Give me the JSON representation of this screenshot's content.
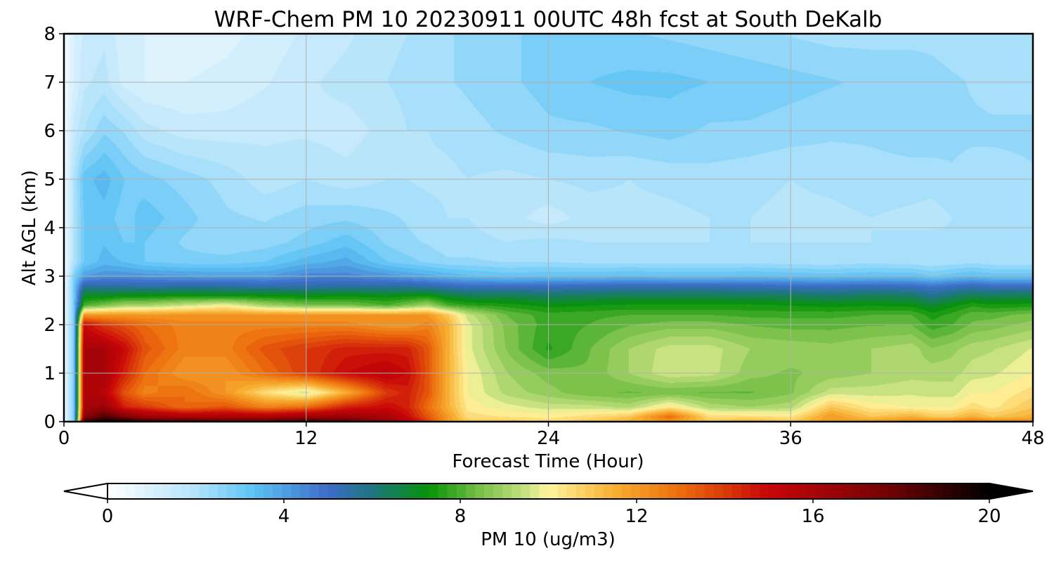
{
  "chart_data": {
    "type": "heatmap",
    "title": "WRF-Chem PM 10  20230911 00UTC 48h fcst at South DeKalb",
    "xlabel": "Forecast Time (Hour)",
    "ylabel": "Alt AGL (km)",
    "xlim": [
      0,
      48
    ],
    "ylim": [
      0,
      8
    ],
    "x_ticks": [
      0,
      12,
      24,
      36,
      48
    ],
    "y_ticks": [
      0,
      1,
      2,
      3,
      4,
      5,
      6,
      7,
      8
    ],
    "grid": true,
    "colorbar": {
      "label": "PM 10  (ug/m3)",
      "range": [
        0,
        20
      ],
      "ticks": [
        0,
        4,
        8,
        12,
        16,
        20
      ],
      "extend": "both",
      "stops": [
        [
          0,
          "#ffffff"
        ],
        [
          2,
          "#b3e3fb"
        ],
        [
          3.3,
          "#5cc3f5"
        ],
        [
          5,
          "#3d6cc8"
        ],
        [
          6,
          "#1e7580"
        ],
        [
          7.3,
          "#079307"
        ],
        [
          8.5,
          "#7cc24b"
        ],
        [
          9.5,
          "#c8e282"
        ],
        [
          10,
          "#fff59f"
        ],
        [
          11.5,
          "#f7ae31"
        ],
        [
          13,
          "#ec6d0c"
        ],
        [
          15,
          "#c80508"
        ],
        [
          17.5,
          "#7a0205"
        ],
        [
          20,
          "#000000"
        ]
      ]
    },
    "x": [
      0,
      0.5,
      1,
      2,
      3,
      4,
      6,
      8,
      10,
      12,
      14,
      16,
      17,
      18,
      19,
      20,
      22,
      24,
      26,
      28,
      30,
      32,
      34,
      36,
      38,
      40,
      42,
      43,
      44,
      45,
      46,
      48
    ],
    "y": [
      0,
      0.1,
      0.3,
      0.6,
      1.0,
      1.5,
      2.0,
      2.2,
      2.4,
      2.6,
      2.8,
      3.0,
      3.3,
      3.7,
      4.2,
      5.0,
      6.0,
      7.0,
      8.0
    ],
    "z": [
      [
        0.3,
        3,
        19,
        20,
        20,
        19,
        19,
        18.5,
        18.5,
        19,
        18.5,
        17,
        16,
        14,
        12,
        11,
        11,
        10.5,
        11,
        11.5,
        12,
        11,
        11.5,
        11,
        12,
        12,
        12.5,
        12.5,
        12.5,
        13,
        12.5,
        12.5
      ],
      [
        0.3,
        3,
        17,
        18.5,
        17.5,
        16.5,
        16,
        16,
        16,
        16.5,
        16.5,
        16,
        15,
        13.5,
        12,
        10.5,
        10.3,
        10.2,
        10.5,
        11,
        13,
        10.5,
        10.5,
        10.3,
        12,
        11,
        11.5,
        11,
        11,
        11.5,
        11,
        11.5
      ],
      [
        0.3,
        3,
        16,
        16.5,
        14.5,
        14,
        13,
        13.5,
        12.5,
        13,
        14.5,
        15,
        14.5,
        13,
        11.5,
        10.2,
        9.8,
        9.5,
        9.5,
        9.2,
        10.3,
        9.2,
        9,
        9.2,
        11,
        10.2,
        10,
        10,
        10,
        10.5,
        10.2,
        11
      ],
      [
        0.3,
        3,
        16,
        15.5,
        13.5,
        12.5,
        13,
        12,
        10.5,
        9.5,
        11.5,
        14,
        14.5,
        13.5,
        11.5,
        10,
        9.2,
        8.8,
        8.4,
        8.3,
        8.4,
        8.3,
        8.3,
        8.6,
        9.5,
        9.5,
        9.6,
        9.5,
        9.5,
        10,
        10,
        10.5
      ],
      [
        0.3,
        3,
        16,
        16,
        14.5,
        13,
        12,
        12,
        13,
        14,
        15,
        15.5,
        15,
        13.5,
        11.5,
        10,
        9,
        8.5,
        8.4,
        9,
        9.6,
        9.5,
        8.8,
        8.6,
        8.8,
        9,
        9.2,
        9.2,
        9.2,
        9.5,
        9.6,
        10
      ],
      [
        0.3,
        3,
        16,
        16,
        15,
        13.5,
        12.5,
        12.5,
        13.5,
        14,
        14.5,
        14.5,
        14.5,
        13.5,
        11.5,
        9.8,
        8.6,
        7.6,
        8.3,
        9,
        9.5,
        9.5,
        9,
        8.9,
        8.8,
        9,
        9.2,
        8.7,
        8.9,
        9.2,
        9.3,
        9.7
      ],
      [
        0.3,
        3,
        15,
        14,
        13.5,
        13,
        12.5,
        12.5,
        12.5,
        12.5,
        12.5,
        12,
        12,
        12.5,
        11.5,
        9.8,
        8.5,
        7.8,
        8,
        8.3,
        8.5,
        8.5,
        8.3,
        8.2,
        8.2,
        8.3,
        8.3,
        7.8,
        8,
        8.4,
        8.5,
        8.8
      ],
      [
        0.3,
        3,
        12,
        12,
        12,
        12,
        12,
        12,
        12,
        12,
        12,
        12,
        12,
        12,
        11,
        9.5,
        8.3,
        7.8,
        7.9,
        8,
        8,
        8,
        7.9,
        7.9,
        7.9,
        8,
        8,
        7.5,
        7.8,
        8.2,
        8.2,
        8.5
      ],
      [
        0.3,
        3,
        8,
        8.5,
        9,
        9,
        9.5,
        10,
        9,
        8.5,
        8.5,
        8,
        8.5,
        9,
        8,
        7.7,
        7.5,
        7.2,
        7.3,
        7.4,
        7.4,
        7.4,
        7.4,
        7.3,
        7.2,
        7.3,
        7.2,
        6.8,
        7.2,
        7.6,
        7.4,
        7.5
      ],
      [
        0.3,
        3,
        7,
        7,
        7.2,
        7.2,
        7.3,
        7.2,
        7.2,
        7.1,
        7.2,
        7.1,
        7.2,
        7.3,
        6.8,
        6.5,
        6.5,
        6.3,
        6.4,
        6.5,
        6.5,
        6.5,
        6.4,
        6.4,
        6.2,
        6.4,
        6.3,
        5.8,
        6.2,
        6.5,
        6.4,
        6.5
      ],
      [
        0.3,
        3,
        5.6,
        5.5,
        5.5,
        5.4,
        5.5,
        5.5,
        5.4,
        5.4,
        5.5,
        5.5,
        5.5,
        5.4,
        5.2,
        5,
        5,
        5,
        5.1,
        5.2,
        5.2,
        5.2,
        5.1,
        5,
        5,
        5.1,
        5,
        4.8,
        5,
        5.2,
        5,
        5
      ],
      [
        0.3,
        2.8,
        4,
        4.3,
        4.3,
        4.2,
        4.1,
        4,
        4,
        4.5,
        4.5,
        4.2,
        4,
        3.8,
        3.6,
        3.4,
        3.2,
        3.3,
        3.3,
        3.4,
        3.3,
        3.3,
        3.4,
        3.3,
        3.2,
        3.3,
        3.3,
        3,
        3.2,
        3.4,
        3.2,
        3.2
      ],
      [
        0.3,
        2,
        3,
        3.5,
        3.3,
        3,
        2.8,
        2.8,
        3,
        3.5,
        3.8,
        3,
        2.8,
        2.6,
        2.4,
        2.4,
        2.3,
        2.3,
        2.2,
        2.2,
        2.2,
        2.2,
        2.2,
        2.1,
        2.1,
        2.2,
        2.1,
        2,
        2.1,
        2.2,
        2.1,
        2.1
      ],
      [
        0.3,
        2,
        3,
        3.3,
        3,
        3,
        2.6,
        2.4,
        2.5,
        2.8,
        3.2,
        2.6,
        2.4,
        2.3,
        2.1,
        2.1,
        2,
        2.1,
        2,
        2,
        2,
        2,
        2,
        2,
        2,
        2,
        2.1,
        2.2,
        2.1,
        2,
        2,
        2
      ],
      [
        0.3,
        2,
        3,
        3.2,
        2.8,
        3.2,
        2.8,
        2.4,
        2.3,
        2.5,
        2.6,
        2.4,
        2.3,
        2.2,
        2,
        2,
        1.8,
        1.5,
        1.8,
        1.9,
        1.9,
        2,
        2,
        1.9,
        1.9,
        2,
        1.9,
        1.8,
        2,
        2,
        2,
        2
      ],
      [
        0.3,
        2,
        3.2,
        3.5,
        3,
        2.8,
        2.5,
        2.2,
        1.8,
        2,
        1.8,
        2,
        2,
        1.9,
        1.9,
        2,
        1.9,
        2,
        2.1,
        2,
        2.1,
        2.2,
        2.1,
        2,
        2.1,
        2.2,
        2.2,
        2.2,
        2.3,
        2.2,
        2.2,
        2.3
      ],
      [
        0.3,
        1.5,
        2,
        2.6,
        2.3,
        1.8,
        1.5,
        1.5,
        1.6,
        1.6,
        1.5,
        1.8,
        2,
        2,
        2.1,
        2.2,
        2.4,
        2.6,
        2.6,
        2.7,
        2.8,
        2.6,
        2.6,
        2.5,
        2.4,
        2.4,
        2.5,
        2.5,
        2.4,
        2.4,
        2.4,
        2.4
      ],
      [
        0.3,
        1,
        1.6,
        1.8,
        1.2,
        1,
        1,
        1.1,
        1.3,
        1.6,
        1.8,
        2,
        2.1,
        2.1,
        2.3,
        2.4,
        2.6,
        2.8,
        3,
        3.1,
        3.1,
        3,
        2.9,
        2.8,
        2.7,
        2.6,
        2.6,
        2.5,
        2.4,
        2.3,
        2.2,
        2.2
      ],
      [
        0.3,
        1,
        1.4,
        1.6,
        1.1,
        1,
        0.8,
        0.9,
        1.1,
        1.4,
        1.6,
        1.9,
        2,
        2,
        2.3,
        2.4,
        2.6,
        2.8,
        2.8,
        2.7,
        2.6,
        2.5,
        2.4,
        2.3,
        2.2,
        2.2,
        2.2,
        2.2,
        2.1,
        2.1,
        2,
        2
      ]
    ]
  }
}
